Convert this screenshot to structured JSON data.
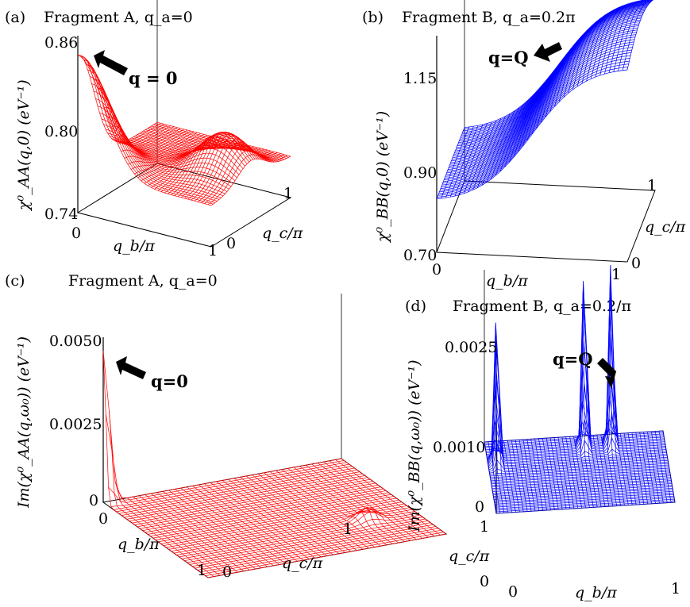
{
  "chart_data": [
    {
      "type": "surface",
      "panel": "(a)",
      "title": "Fragment A, q_a=0",
      "color": "#ff0000",
      "zlabel": "χ⁰_AA(q,0) (eV⁻¹)",
      "xlabel": "q_b/π",
      "ylabel": "q_c/π",
      "x_ticks": [
        "0",
        "1"
      ],
      "y_ticks": [
        "0",
        "1"
      ],
      "z_ticks": [
        "0.74",
        "0.80",
        "0.86"
      ],
      "zlim": [
        0.74,
        0.86
      ],
      "annotation": "q = 0",
      "peak": {
        "x": 0,
        "y": 0,
        "z": 0.855
      },
      "secondary_peak": {
        "x": 0.8,
        "y": 0.5,
        "z": 0.8
      },
      "minimum_z": 0.77
    },
    {
      "type": "surface",
      "panel": "(b)",
      "title": "Fragment B, q_a=0.2π",
      "color": "#0000ff",
      "zlabel": "χ⁰_BB(q,0) (eV⁻¹)",
      "xlabel": "q_b/π",
      "ylabel": "q_c/π",
      "x_ticks": [
        "0",
        "1"
      ],
      "y_ticks": [
        "0",
        "1"
      ],
      "z_ticks": [
        "0.70",
        "0.90",
        "1.15"
      ],
      "zlim": [
        0.7,
        1.15
      ],
      "annotation": "q=Q",
      "peak": {
        "x": 1,
        "y": 0.5,
        "z": 1.22
      },
      "minimum_z": 0.82
    },
    {
      "type": "surface",
      "panel": "(c)",
      "title": "Fragment A, q_a=0",
      "color": "#ff0000",
      "zlabel": "Im(χ⁰_AA(q,ω₀)) (eV⁻¹)",
      "xlabel": "q_b/π",
      "ylabel": "q_c/π",
      "x_ticks": [
        "0",
        "1"
      ],
      "y_ticks": [
        "0",
        "1"
      ],
      "z_ticks": [
        "0",
        "0.0025",
        "0.0050"
      ],
      "zlim": [
        0,
        0.005
      ],
      "annotation": "q=0",
      "peak": {
        "x": 0,
        "y": 0,
        "z": 0.0047
      },
      "secondary_peak": {
        "x": 0.7,
        "y": 0.8,
        "z": 0.0004
      }
    },
    {
      "type": "surface",
      "panel": "(d)",
      "title": "Fragment B, q_a=0.2/π",
      "color": "#0000ff",
      "zlabel": "Im(χ⁰_BB(q,ω₀)) (eV⁻¹)",
      "xlabel": "q_b/π",
      "ylabel": "q_c/π",
      "x_ticks": [
        "0",
        "1"
      ],
      "y_ticks": [
        "0",
        "1"
      ],
      "z_ticks": [
        "0",
        "0.0010",
        "0.0025"
      ],
      "zlim": [
        0,
        0.0025
      ],
      "annotation": "q=Q",
      "peaks": [
        {
          "x": 0.05,
          "y": 0.7,
          "z": 0.0017
        },
        {
          "x": 0.55,
          "y": 0.85,
          "z": 0.002
        },
        {
          "x": 0.7,
          "y": 0.85,
          "z": 0.002
        }
      ]
    }
  ]
}
